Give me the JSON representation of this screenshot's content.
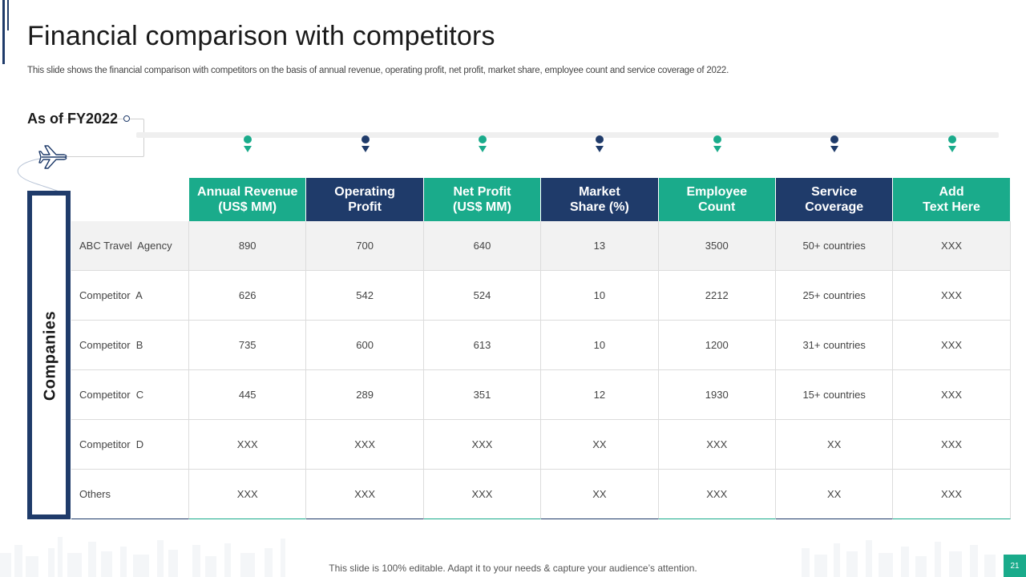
{
  "slide": {
    "title": "Financial comparison with competitors",
    "subtitle": "This slide shows the financial comparison with competitors on the basis of annual revenue, operating profit, net profit,  market share, employee count and service coverage of 2022.",
    "period_label": "As of FY2022",
    "side_label": "Companies",
    "footer_note": "This slide is 100% editable. Adapt it to your needs & capture your audience’s attention.",
    "page_number": "21"
  },
  "colors": {
    "teal": "#1aab8b",
    "navy": "#1f3b6a"
  },
  "icons": [
    "airplane-icon",
    "map-pin-icon"
  ],
  "table": {
    "headers": [
      {
        "label": "Annual Revenue\n(US$ MM)",
        "color": "teal"
      },
      {
        "label": "Operating\nProfit",
        "color": "navy"
      },
      {
        "label": "Net Profit\n(US$ MM)",
        "color": "teal"
      },
      {
        "label": "Market\nShare (%)",
        "color": "navy"
      },
      {
        "label": "Employee\nCount",
        "color": "teal"
      },
      {
        "label": "Service\nCoverage",
        "color": "navy"
      },
      {
        "label": "Add\nText Here",
        "color": "teal"
      }
    ],
    "rows": [
      {
        "name": "ABC Travel  Agency",
        "values": [
          "890",
          "700",
          "640",
          "13",
          "3500",
          "50+ countries",
          "XXX"
        ]
      },
      {
        "name": "Competitor  A",
        "values": [
          "626",
          "542",
          "524",
          "10",
          "2212",
          "25+ countries",
          "XXX"
        ]
      },
      {
        "name": "Competitor  B",
        "values": [
          "735",
          "600",
          "613",
          "10",
          "1200",
          "31+ countries",
          "XXX"
        ]
      },
      {
        "name": "Competitor  C",
        "values": [
          "445",
          "289",
          "351",
          "12",
          "1930",
          "15+ countries",
          "XXX"
        ]
      },
      {
        "name": "Competitor  D",
        "values": [
          "XXX",
          "XXX",
          "XXX",
          "XX",
          "XXX",
          "XX",
          "XXX"
        ]
      },
      {
        "name": "Others",
        "values": [
          "XXX",
          "XXX",
          "XXX",
          "XX",
          "XXX",
          "XX",
          "XXX"
        ]
      }
    ]
  }
}
